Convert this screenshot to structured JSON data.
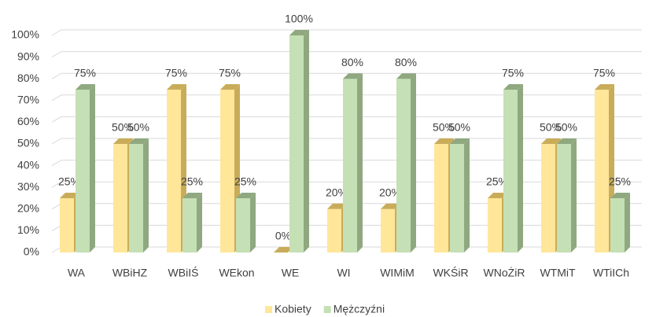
{
  "chart_data": {
    "type": "bar3d",
    "categories": [
      "WA",
      "WBiHZ",
      "WBiIŚ",
      "WEkon",
      "WE",
      "WI",
      "WIMiM",
      "WKŚiR",
      "WNoŻiR",
      "WTMiT",
      "WTiICh"
    ],
    "series": [
      {
        "name": "Kobiety",
        "color": "#ffe699",
        "side_color": "#c9ac5a",
        "values": [
          25,
          50,
          75,
          75,
          0,
          20,
          20,
          50,
          25,
          50,
          75
        ],
        "value_labels": [
          "25%",
          "50%",
          "75%",
          "75%",
          "0%",
          "20%",
          "20%",
          "50%",
          "25%",
          "50%",
          "75%"
        ]
      },
      {
        "name": "Mężczyźni",
        "color": "#c5e0b4",
        "side_color": "#8fa880",
        "values": [
          75,
          50,
          25,
          25,
          100,
          80,
          80,
          50,
          75,
          50,
          25
        ],
        "value_labels": [
          "75%",
          "50%",
          "25%",
          "25%",
          "100%",
          "80%",
          "80%",
          "50%",
          "75%",
          "50%",
          "25%"
        ]
      }
    ],
    "ylim": [
      0,
      100
    ],
    "yticks": [
      {
        "value": 0,
        "label": "0%"
      },
      {
        "value": 10,
        "label": "10%"
      },
      {
        "value": 20,
        "label": "20%"
      },
      {
        "value": 30,
        "label": "30%"
      },
      {
        "value": 40,
        "label": "40%"
      },
      {
        "value": 50,
        "label": "50%"
      },
      {
        "value": 60,
        "label": "60%"
      },
      {
        "value": 70,
        "label": "70%"
      },
      {
        "value": 80,
        "label": "80%"
      },
      {
        "value": 90,
        "label": "90%"
      },
      {
        "value": 100,
        "label": "100%"
      }
    ],
    "grid": true,
    "legend": "bottom"
  }
}
